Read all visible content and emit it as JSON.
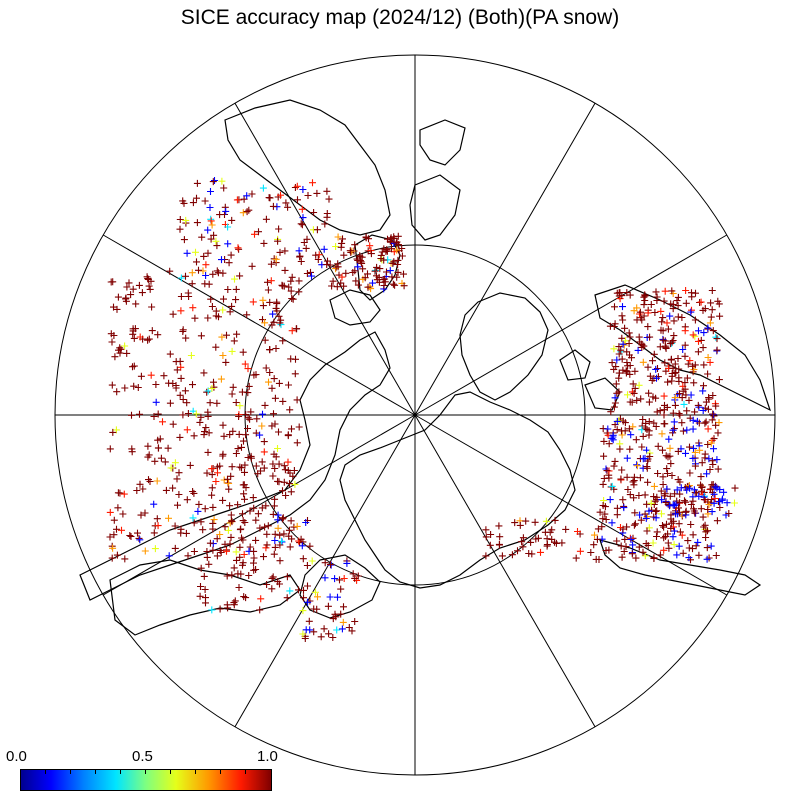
{
  "title": "SICE accuracy map (2024/12) (Both)(PA snow)",
  "colorbar": {
    "min_label": "0.0",
    "mid_label": "0.5",
    "max_label": "1.0",
    "colors": [
      "#00008f",
      "#0000ff",
      "#0080ff",
      "#00e5ff",
      "#7fff80",
      "#e5ff1a",
      "#ff9900",
      "#ff1a00",
      "#800000"
    ]
  },
  "map": {
    "projection": "north-polar-stereographic",
    "latitude_circle_deg": 70,
    "meridian_spacing_deg": 30
  },
  "symbols": {
    "marker": "+",
    "dominant_color": "#8b0000"
  }
}
